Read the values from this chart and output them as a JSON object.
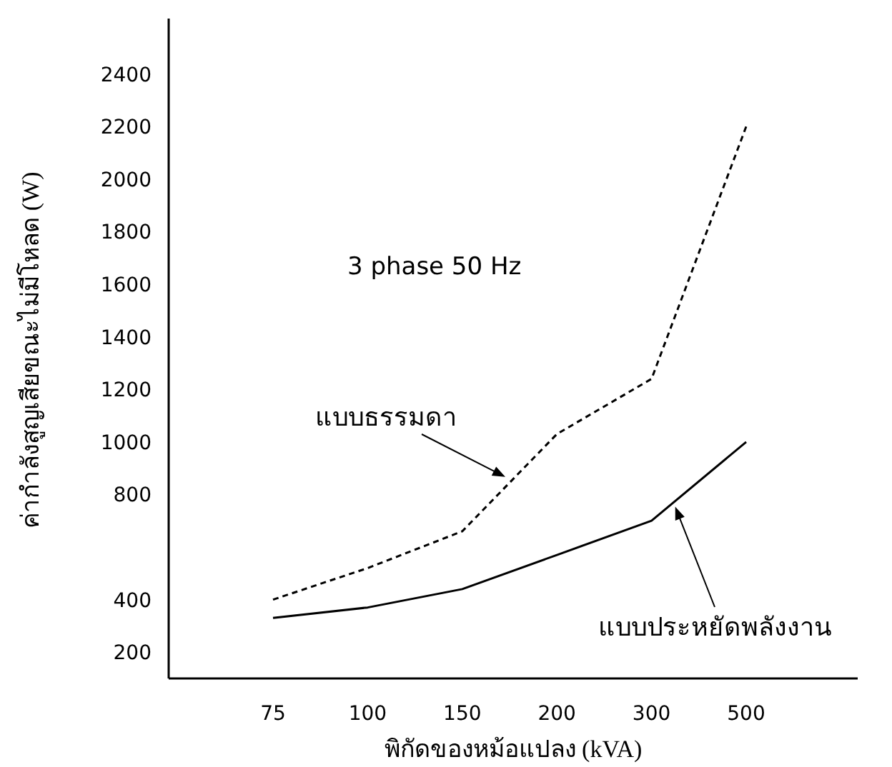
{
  "chart_data": {
    "type": "line",
    "xlabel": "พิกัดของหม้อแปลง (kVA)",
    "ylabel": "ค่ากำลังสูญเสียขณะไม่มีโหลด (W)",
    "annotations": [
      "3 phase 50 Hz"
    ],
    "categories": [
      "75",
      "100",
      "150",
      "200",
      "300",
      "500"
    ],
    "ylim": [
      100,
      2600
    ],
    "yticks": [
      200,
      400,
      800,
      1000,
      1200,
      1400,
      1600,
      1800,
      2000,
      2200,
      2400
    ],
    "grid": false,
    "legend": false,
    "marker": "none",
    "series": [
      {
        "name": "แบบธรรมดา",
        "color": "#000000",
        "line_style": "dashed",
        "values": [
          400,
          520,
          660,
          1030,
          1240,
          2200
        ]
      },
      {
        "name": "แบบประหยัดพลังงาน",
        "color": "#000000",
        "line_style": "solid",
        "values": [
          330,
          370,
          440,
          570,
          700,
          1000
        ]
      }
    ]
  }
}
